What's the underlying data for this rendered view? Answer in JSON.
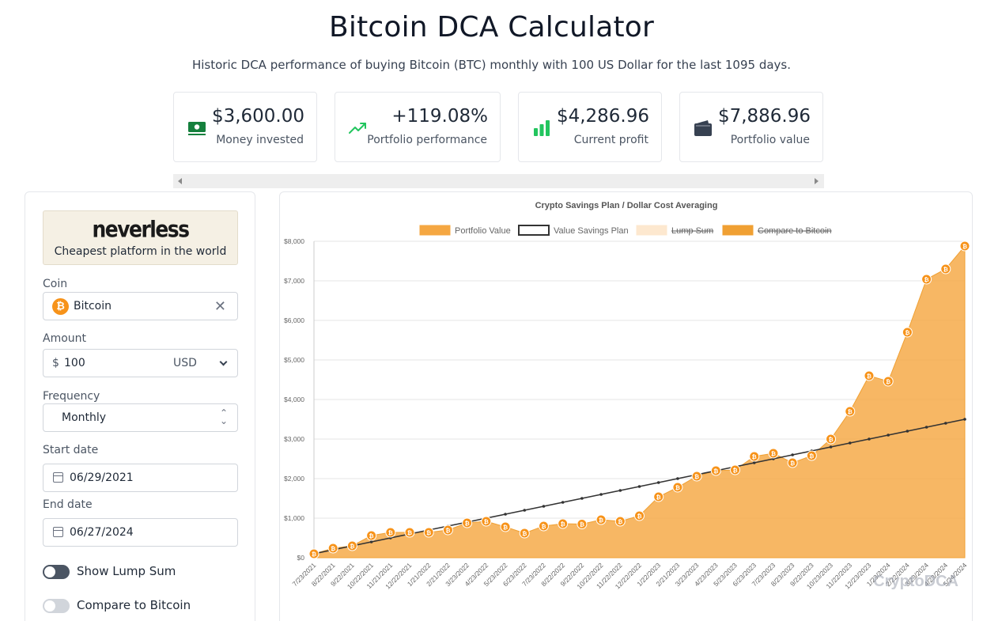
{
  "header": {
    "title": "Bitcoin DCA Calculator",
    "subtitle": "Historic DCA performance of buying Bitcoin (BTC) monthly with 100 US Dollar for the last 1095 days."
  },
  "stats": [
    {
      "value": "$3,600.00",
      "label": "Money invested",
      "icon": "money-icon",
      "color": "#15803d"
    },
    {
      "value": "+119.08%",
      "label": "Portfolio performance",
      "icon": "trending-up-icon",
      "color": "#22c55e"
    },
    {
      "value": "$4,286.96",
      "label": "Current profit",
      "icon": "bar-chart-icon",
      "color": "#22c55e"
    },
    {
      "value": "$7,886.96",
      "label": "Portfolio value",
      "icon": "wallet-icon",
      "color": "#374151"
    }
  ],
  "sidebar": {
    "promo": {
      "logo": "neverless",
      "tagline": "Cheapest platform in the world"
    },
    "coin": {
      "label": "Coin",
      "value": "Bitcoin",
      "icon": "bitcoin-icon"
    },
    "amount": {
      "label": "Amount",
      "symbol": "$",
      "value": "100",
      "currency": "USD"
    },
    "frequency": {
      "label": "Frequency",
      "value": "Monthly"
    },
    "start_date": {
      "label": "Start date",
      "value": "06/29/2021"
    },
    "end_date": {
      "label": "End date",
      "value": "06/27/2024"
    },
    "toggles": [
      {
        "label": "Show Lump Sum",
        "on": false,
        "color": "#4b5563"
      },
      {
        "label": "Compare to Bitcoin",
        "on": false,
        "color": "#d1d5db"
      }
    ]
  },
  "chart_data": {
    "type": "area",
    "title": "Crypto Savings Plan / Dollar Cost Averaging",
    "legend": [
      {
        "name": "Portfolio Value",
        "color": "#f5a742",
        "hidden": false
      },
      {
        "name": "Value Savings Plan",
        "color": "#333333",
        "hidden": false
      },
      {
        "name": "Lump Sum",
        "color": "#fde8cf",
        "hidden": true
      },
      {
        "name": "Compare to Bitcoin",
        "color": "#f0a033",
        "hidden": true
      }
    ],
    "legend_position": "top",
    "watermark": "CryptoDCA",
    "ylim": [
      0,
      8000
    ],
    "yticks": [
      "$0",
      "$1,000",
      "$2,000",
      "$3,000",
      "$4,000",
      "$5,000",
      "$6,000",
      "$7,000",
      "$8,000"
    ],
    "xlabels": [
      "7/23/2021",
      "8/22/2021",
      "9/22/2021",
      "10/22/2021",
      "11/21/2021",
      "12/22/2021",
      "1/21/2022",
      "2/21/2022",
      "3/23/2022",
      "4/23/2022",
      "5/23/2022",
      "6/23/2022",
      "7/23/2022",
      "8/22/2022",
      "9/22/2022",
      "10/22/2022",
      "11/22/2022",
      "12/22/2022",
      "1/22/2023",
      "2/21/2023",
      "3/23/2023",
      "4/23/2023",
      "5/23/2023",
      "6/23/2023",
      "7/23/2023",
      "8/23/2023",
      "9/22/2023",
      "10/23/2023",
      "11/22/2023",
      "12/23/2023",
      "1/23/2024",
      "2/22/2024",
      "3/23/2024",
      "4/23/2024",
      "5/24/2024"
    ],
    "series": [
      {
        "name": "Portfolio Value",
        "values": [
          100,
          240,
          300,
          560,
          640,
          640,
          640,
          700,
          880,
          920,
          780,
          620,
          800,
          860,
          850,
          960,
          920,
          1060,
          1540,
          1780,
          2060,
          2200,
          2220,
          2560,
          2640,
          2400,
          2580,
          3000,
          3700,
          4600,
          4460,
          5700,
          7040,
          7300,
          7880
        ]
      },
      {
        "name": "Value Savings Plan",
        "values": [
          100,
          200,
          300,
          400,
          500,
          600,
          700,
          800,
          900,
          1000,
          1100,
          1200,
          1300,
          1400,
          1500,
          1600,
          1700,
          1800,
          1900,
          2000,
          2100,
          2200,
          2300,
          2400,
          2500,
          2600,
          2700,
          2800,
          2900,
          3000,
          3100,
          3200,
          3300,
          3400,
          3500
        ]
      }
    ],
    "grid": true
  }
}
